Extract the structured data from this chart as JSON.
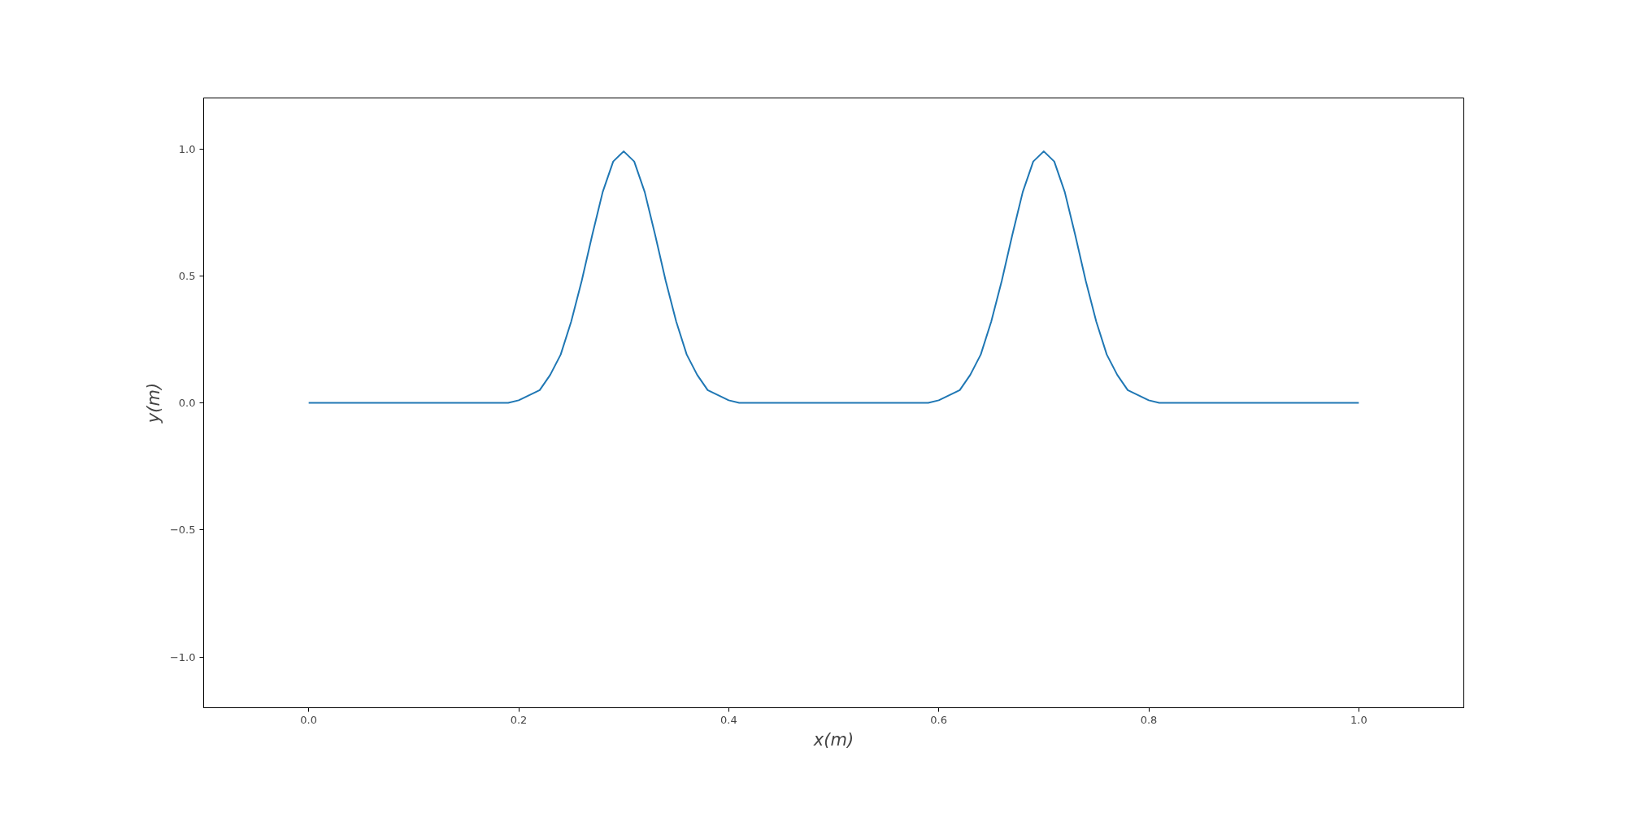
{
  "chart_data": {
    "type": "line",
    "xlabel": "x(m)",
    "ylabel": "y(m)",
    "x": [
      0,
      0.1,
      0.19,
      0.2,
      0.21,
      0.22,
      0.23,
      0.24,
      0.25,
      0.26,
      0.27,
      0.28,
      0.29,
      0.3,
      0.31,
      0.32,
      0.33,
      0.34,
      0.35,
      0.36,
      0.37,
      0.38,
      0.39,
      0.4,
      0.41,
      0.5,
      0.59,
      0.6,
      0.61,
      0.62,
      0.63,
      0.64,
      0.65,
      0.66,
      0.67,
      0.68,
      0.69,
      0.7,
      0.71,
      0.72,
      0.73,
      0.74,
      0.75,
      0.76,
      0.77,
      0.78,
      0.79,
      0.8,
      0.81,
      0.9,
      1.0
    ],
    "series": [
      {
        "color": "#1f77b4",
        "values": [
          0,
          0,
          0,
          0.01,
          0.03,
          0.05,
          0.11,
          0.19,
          0.32,
          0.48,
          0.66,
          0.83,
          0.95,
          0.99,
          0.95,
          0.83,
          0.66,
          0.48,
          0.32,
          0.19,
          0.11,
          0.05,
          0.03,
          0.01,
          0,
          0,
          0,
          0.01,
          0.03,
          0.05,
          0.11,
          0.19,
          0.32,
          0.48,
          0.66,
          0.83,
          0.95,
          0.99,
          0.95,
          0.83,
          0.66,
          0.48,
          0.32,
          0.19,
          0.11,
          0.05,
          0.03,
          0.01,
          0,
          0,
          0
        ]
      }
    ],
    "xlim": [
      -0.1,
      1.1
    ],
    "ylim": [
      -1.2,
      1.2
    ],
    "xticks": [
      {
        "value": 0,
        "label": "0.0"
      },
      {
        "value": 0.2,
        "label": "0.2"
      },
      {
        "value": 0.4,
        "label": "0.4"
      },
      {
        "value": 0.6,
        "label": "0.6"
      },
      {
        "value": 0.8,
        "label": "0.8"
      },
      {
        "value": 1.0,
        "label": "1.0"
      }
    ],
    "yticks": [
      {
        "value": -1.0,
        "label": "−1.0"
      },
      {
        "value": -0.5,
        "label": "−0.5"
      },
      {
        "value": 0,
        "label": "0.0"
      },
      {
        "value": 0.5,
        "label": "0.5"
      },
      {
        "value": 1.0,
        "label": "1.0"
      }
    ],
    "grid": false,
    "marker": "none",
    "line_style": "solid"
  }
}
